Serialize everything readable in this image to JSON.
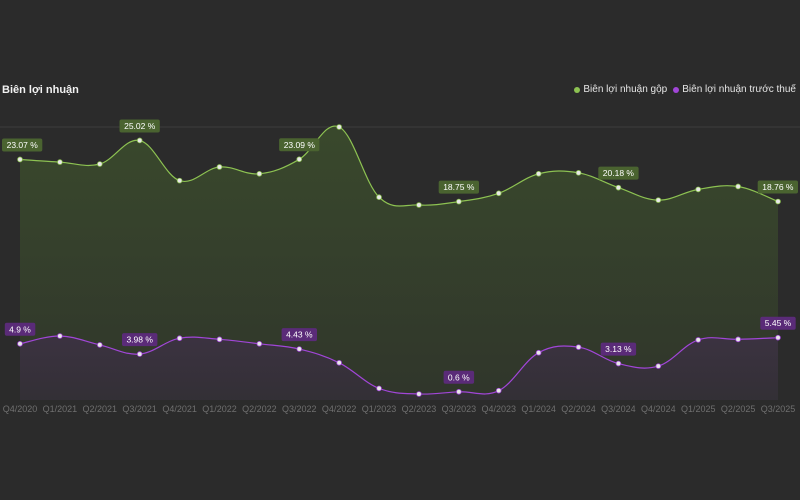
{
  "chart_data": {
    "type": "line",
    "title": "Biên lợi nhuận",
    "legend_position": "top-right",
    "categories": [
      "Q4/2020",
      "Q1/2021",
      "Q2/2021",
      "Q3/2021",
      "Q4/2021",
      "Q1/2022",
      "Q2/2022",
      "Q3/2022",
      "Q4/2022",
      "Q1/2023",
      "Q2/2023",
      "Q3/2023",
      "Q4/2023",
      "Q1/2024",
      "Q2/2024",
      "Q3/2024",
      "Q4/2024",
      "Q1/2025",
      "Q2/2025",
      "Q3/2025"
    ],
    "series": [
      {
        "name": "Biên lợi nhuận gộp",
        "color": "#8dc252",
        "label_bg": "#4a6330",
        "values": [
          23.07,
          22.8,
          22.6,
          25.02,
          20.9,
          22.3,
          21.6,
          23.09,
          26.4,
          19.2,
          18.4,
          18.75,
          19.6,
          21.6,
          21.7,
          20.18,
          18.9,
          20.0,
          20.3,
          18.76
        ],
        "labels": [
          "23.07 %",
          "",
          "",
          "25.02 %",
          "",
          "",
          "",
          "23.09 %",
          "",
          "",
          "",
          "18.75 %",
          "",
          "",
          "",
          "20.18 %",
          "",
          "",
          "",
          "18.76 %"
        ]
      },
      {
        "name": "Biên lợi nhuận trước thuế",
        "color": "#a146d8",
        "label_bg": "#5a2b78",
        "values": [
          4.9,
          5.6,
          4.8,
          3.98,
          5.4,
          5.3,
          4.9,
          4.43,
          3.2,
          0.9,
          0.4,
          0.6,
          0.7,
          4.1,
          4.6,
          3.13,
          2.9,
          5.25,
          5.3,
          5.45
        ],
        "labels": [
          "4.9 %",
          "",
          "",
          "3.98 %",
          "",
          "",
          "",
          "4.43 %",
          "",
          "",
          "",
          "0.6 %",
          "",
          "",
          "",
          "3.13 %",
          "",
          "",
          "",
          "5.45 %"
        ]
      }
    ]
  }
}
